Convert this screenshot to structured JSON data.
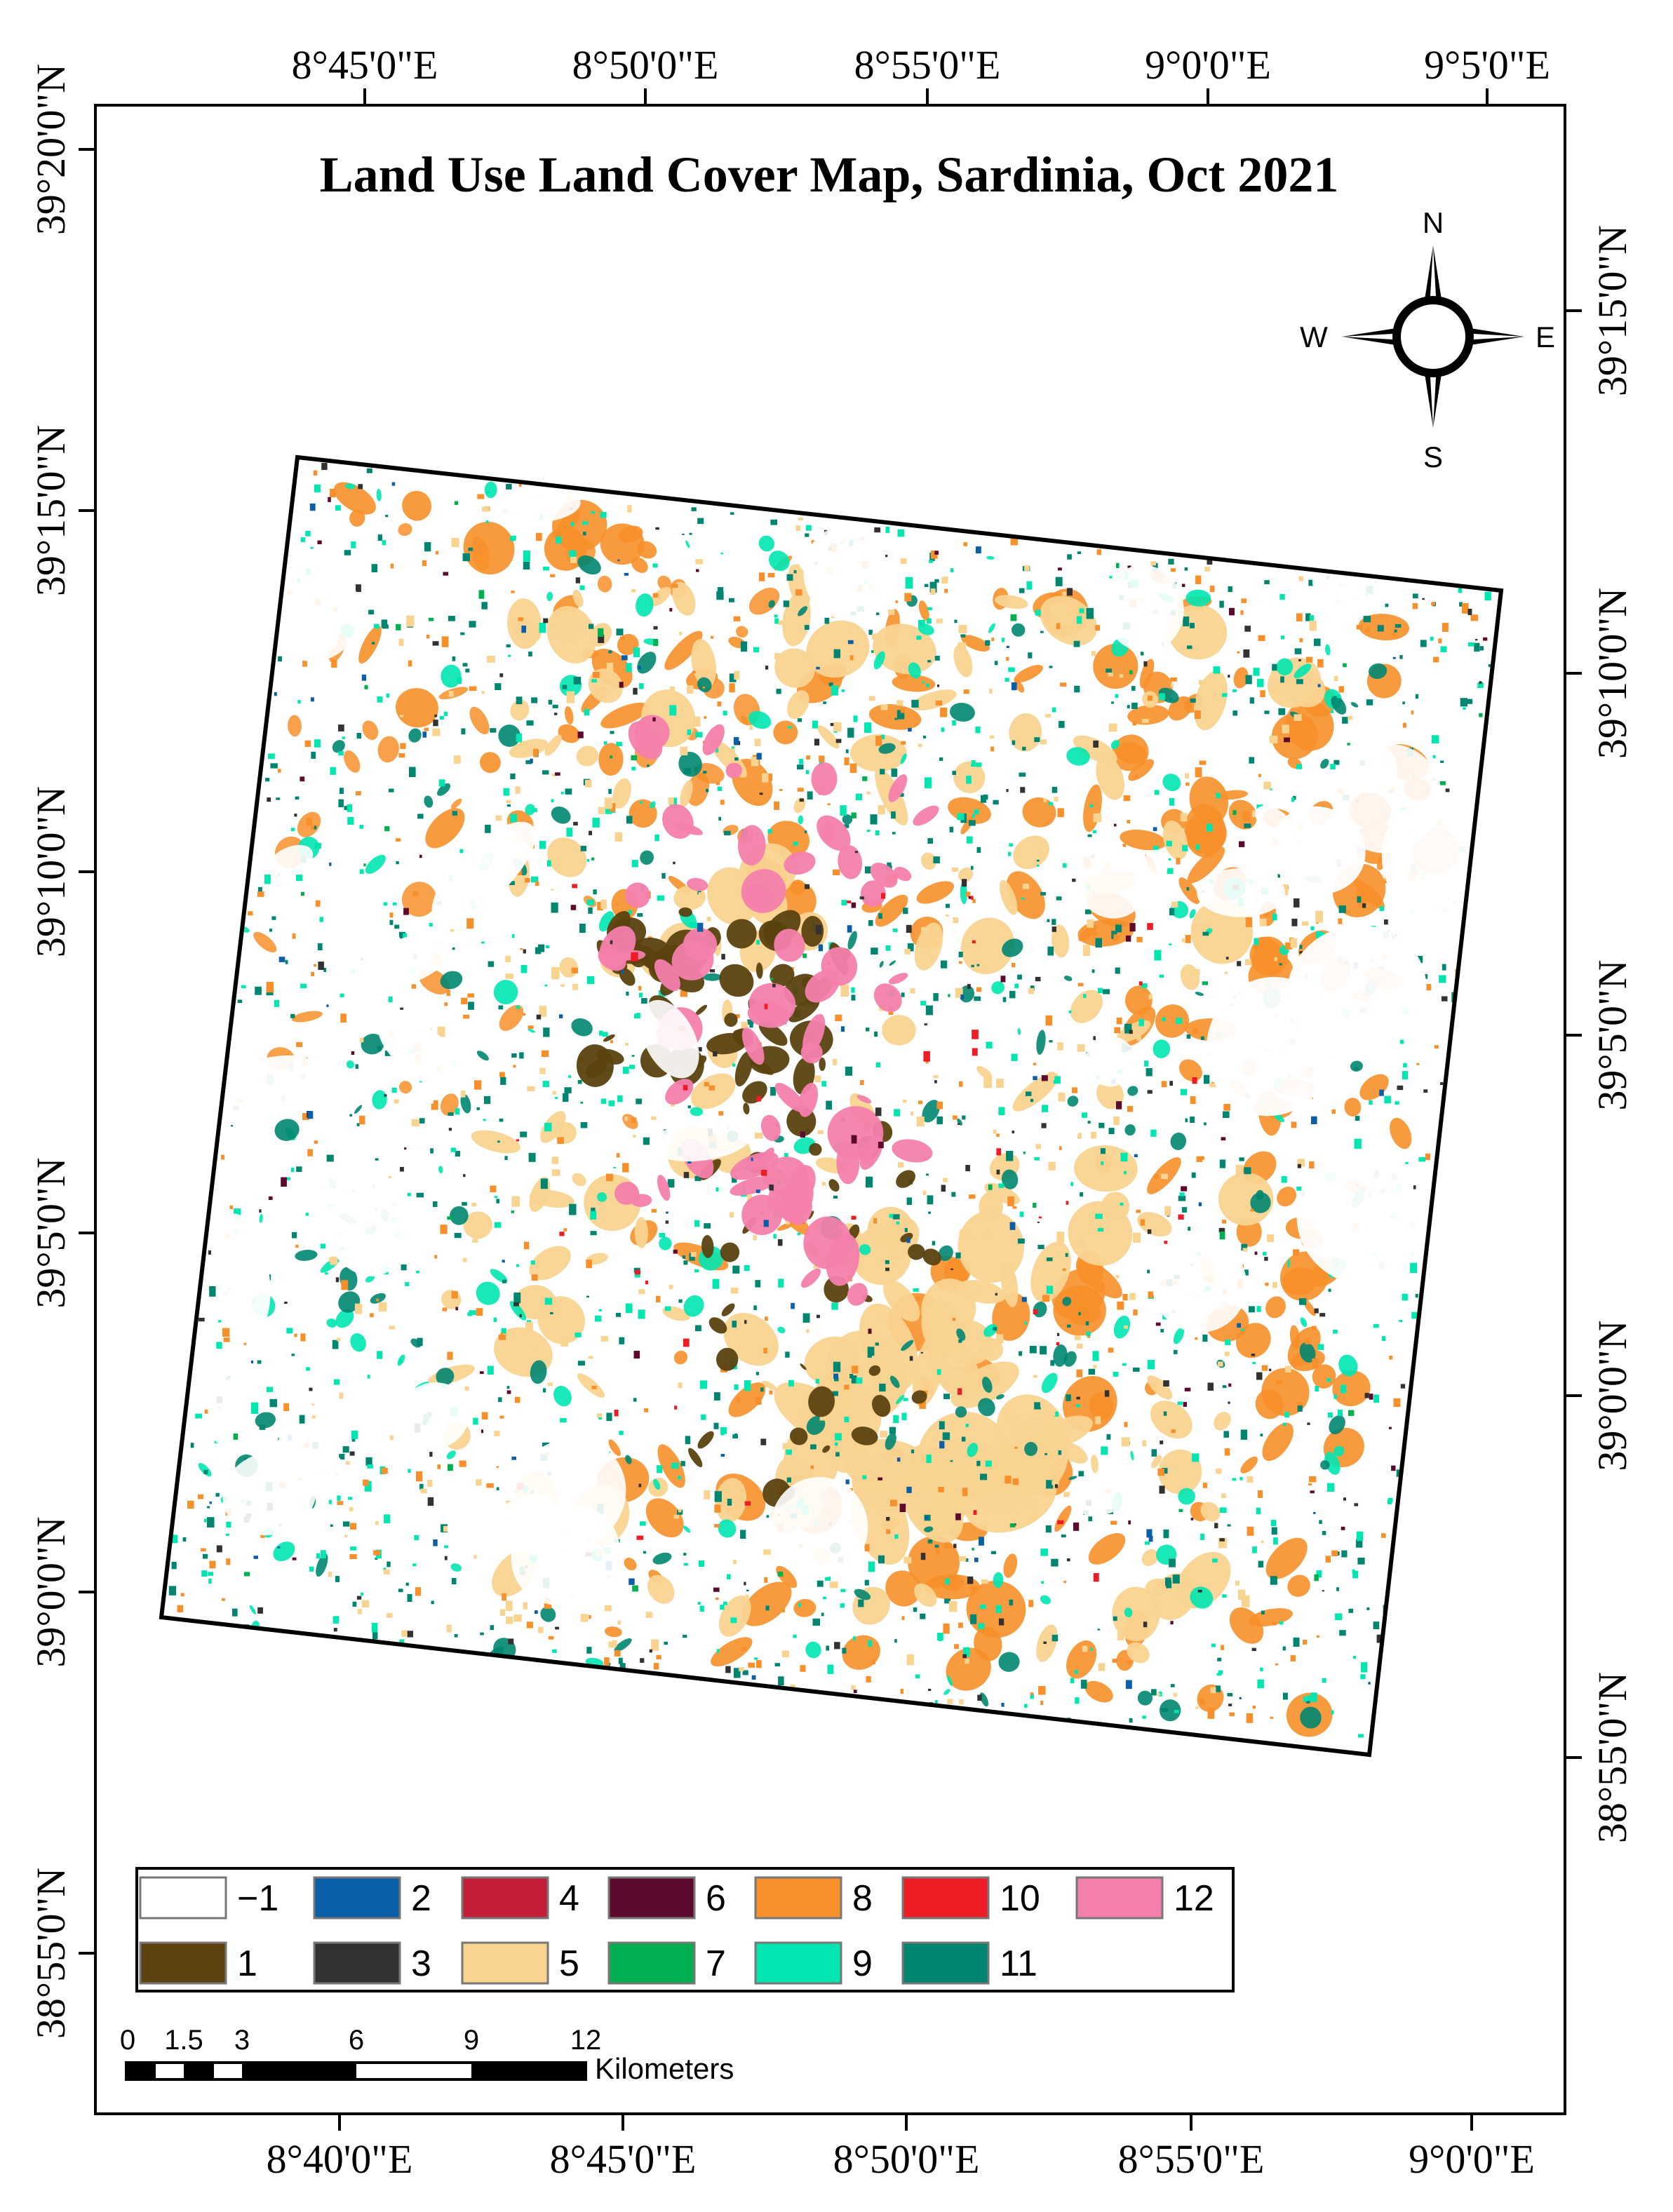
{
  "title": "Land Use Land Cover Map, Sardinia, Oct 2021",
  "top_ticks": [
    "8°45'0\"E",
    "8°50'0\"E",
    "8°55'0\"E",
    "9°0'0\"E",
    "9°5'0\"E"
  ],
  "bottom_ticks": [
    "8°40'0\"E",
    "8°45'0\"E",
    "8°50'0\"E",
    "8°55'0\"E",
    "9°0'0\"E"
  ],
  "left_ticks": [
    "39°20'0\"N",
    "39°15'0\"N",
    "39°10'0\"N",
    "39°5'0\"N",
    "39°0'0\"N",
    "38°55'0\"N"
  ],
  "right_ticks": [
    "39°15'0\"N",
    "39°10'0\"N",
    "39°5'0\"N",
    "39°0'0\"N",
    "38°55'0\"N"
  ],
  "compass": {
    "n": "N",
    "s": "S",
    "e": "E",
    "w": "W"
  },
  "scalebar": {
    "ticks": [
      "0",
      "1.5",
      "3",
      "6",
      "9",
      "12"
    ],
    "unit": "Kilometers"
  },
  "legend": [
    {
      "label": "−1",
      "color": "#ffffff"
    },
    {
      "label": "2",
      "color": "#0b5ea8"
    },
    {
      "label": "4",
      "color": "#c41e3a"
    },
    {
      "label": "6",
      "color": "#5c0a2e"
    },
    {
      "label": "8",
      "color": "#f7902a"
    },
    {
      "label": "10",
      "color": "#ee1c25"
    },
    {
      "label": "12",
      "color": "#f47fac"
    },
    {
      "label": "1",
      "color": "#5b4210"
    },
    {
      "label": "3",
      "color": "#333132"
    },
    {
      "label": "5",
      "color": "#f9d390"
    },
    {
      "label": "7",
      "color": "#00b050"
    },
    {
      "label": "9",
      "color": "#00e6b0"
    },
    {
      "label": "11",
      "color": "#008670"
    }
  ],
  "map_colors": {
    "orange": "#f7902a",
    "tan": "#f9d390",
    "teal": "#008670",
    "mint": "#00e6b0",
    "brown": "#5b4210",
    "pink": "#f47fac",
    "dark": "#333132",
    "blue": "#0b5ea8",
    "red": "#ee1c25",
    "maroon": "#5c0a2e",
    "green": "#00b050"
  }
}
